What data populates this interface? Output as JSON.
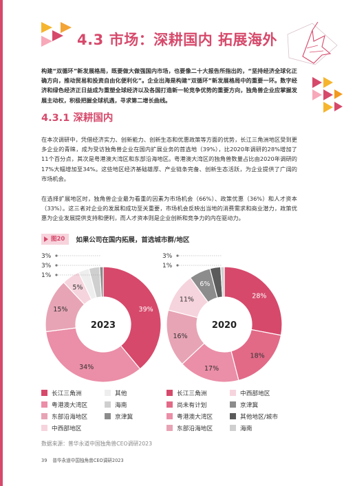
{
  "section": {
    "number": "4.3",
    "title": "市场：深耕国内 拓展海外"
  },
  "intro": "构建“双循环”新发展格局，既要做大做强国内市场，也要像二十大报告所指出的，“坚持经济全球化正确方向，推动贸易和投资自由化便利化”。企业出海是构建“双循环”新发展格局中的重要一环。数字经济和绿色经济正日益成为重塑全球经济以及各国打造新一轮竞争优势的重要方向，独角兽企业应掌握发展主动权，积极把握全球机遇，寻求第二增长曲线。",
  "subsection": {
    "number": "4.3.1",
    "title": "深耕国内"
  },
  "paragraph1": "在本次调研中，凭借经济实力、创新能力、创新生态和优惠政策等方面的优势，长江三角洲地区受到更多企业的青睐，成为受访独角兽企业在国内扩展业务的首选地（39%），比2020年调研的28%增加了11个百分点，其次是粤港澳大湾区和东部沿海地区。粤港澳大湾区的独角兽数量占比由2020年调研的17%大幅增加至34%。这些地区经济基础雄厚、产业链条完备、创新生态活跃，为企业提供了广阔的市场机会。",
  "paragraph2": "在选择扩展地区时，独角兽企业最为看重的因素为市场机会（66%）、政策优惠（36%）和人才资本（33%）。这三者对企业的发展和成功至关重要，市场机会反映出当地的消费需求和商业潜力，政策优惠为企业发展提供支持和便利，而人才资本则是企业创新和竞争力的内在驱动力。",
  "figure": {
    "tag": "图20",
    "caption": "如果公司在国内拓展，首选城市群/地区"
  },
  "colors": {
    "accent": "#d6496b",
    "yangtze": "#d6496b",
    "gba": "#eb8ea7",
    "east_coast": "#e7a4b5",
    "central_west": "#f6d4dd",
    "other": "#eeeeee",
    "hainan": "#cfcfcf",
    "jingjinji": "#8c8c8c",
    "dark": "#5b5b5b",
    "undecided": "#e26a87"
  },
  "chart_data": [
    {
      "type": "pie",
      "title": "2023",
      "series": [
        {
          "name": "长江三角洲",
          "value": 39,
          "label": "39%"
        },
        {
          "name": "粤港澳大湾区",
          "value": 34,
          "label": "34%"
        },
        {
          "name": "东部沿海地区",
          "value": 15,
          "label": "15%"
        },
        {
          "name": "中西部地区",
          "value": 5,
          "label": "5%"
        },
        {
          "name": "其他",
          "value": 3,
          "label": "3%"
        },
        {
          "name": "海南",
          "value": 3,
          "label": "3%"
        },
        {
          "name": "京津冀",
          "value": 1,
          "label": "1%"
        }
      ],
      "legend": [
        "长江三角洲",
        "其他",
        "粤港澳大湾区",
        "海南",
        "东部沿海地区",
        "京津冀",
        "中西部地区"
      ]
    },
    {
      "type": "pie",
      "title": "2020",
      "series": [
        {
          "name": "长江三角洲",
          "value": 28,
          "label": "28%"
        },
        {
          "name": "尚未有计划",
          "value": 18,
          "label": "18%"
        },
        {
          "name": "粤港澳大湾区",
          "value": 17,
          "label": "17%"
        },
        {
          "name": "东部沿海地区",
          "value": 16,
          "label": "16%"
        },
        {
          "name": "中西部地区",
          "value": 11,
          "label": "11%"
        },
        {
          "name": "京津冀",
          "value": 6,
          "label": "6%"
        },
        {
          "name": "其他地区/城市",
          "value": 3,
          "label": "3%"
        },
        {
          "name": "海南",
          "value": 1,
          "label": "1%"
        }
      ],
      "legend": [
        "长江三角洲",
        "中西部地区",
        "尚未有计划",
        "京津冀",
        "粤港澳大湾区",
        "其他地区/城市",
        "东部沿海地区",
        "海南"
      ]
    }
  ],
  "source": "数据来源：普华永道中国独角兽CEO调研2023",
  "footer": {
    "page": "39",
    "title": "普华永道中国独角兽CEO调研2023"
  }
}
